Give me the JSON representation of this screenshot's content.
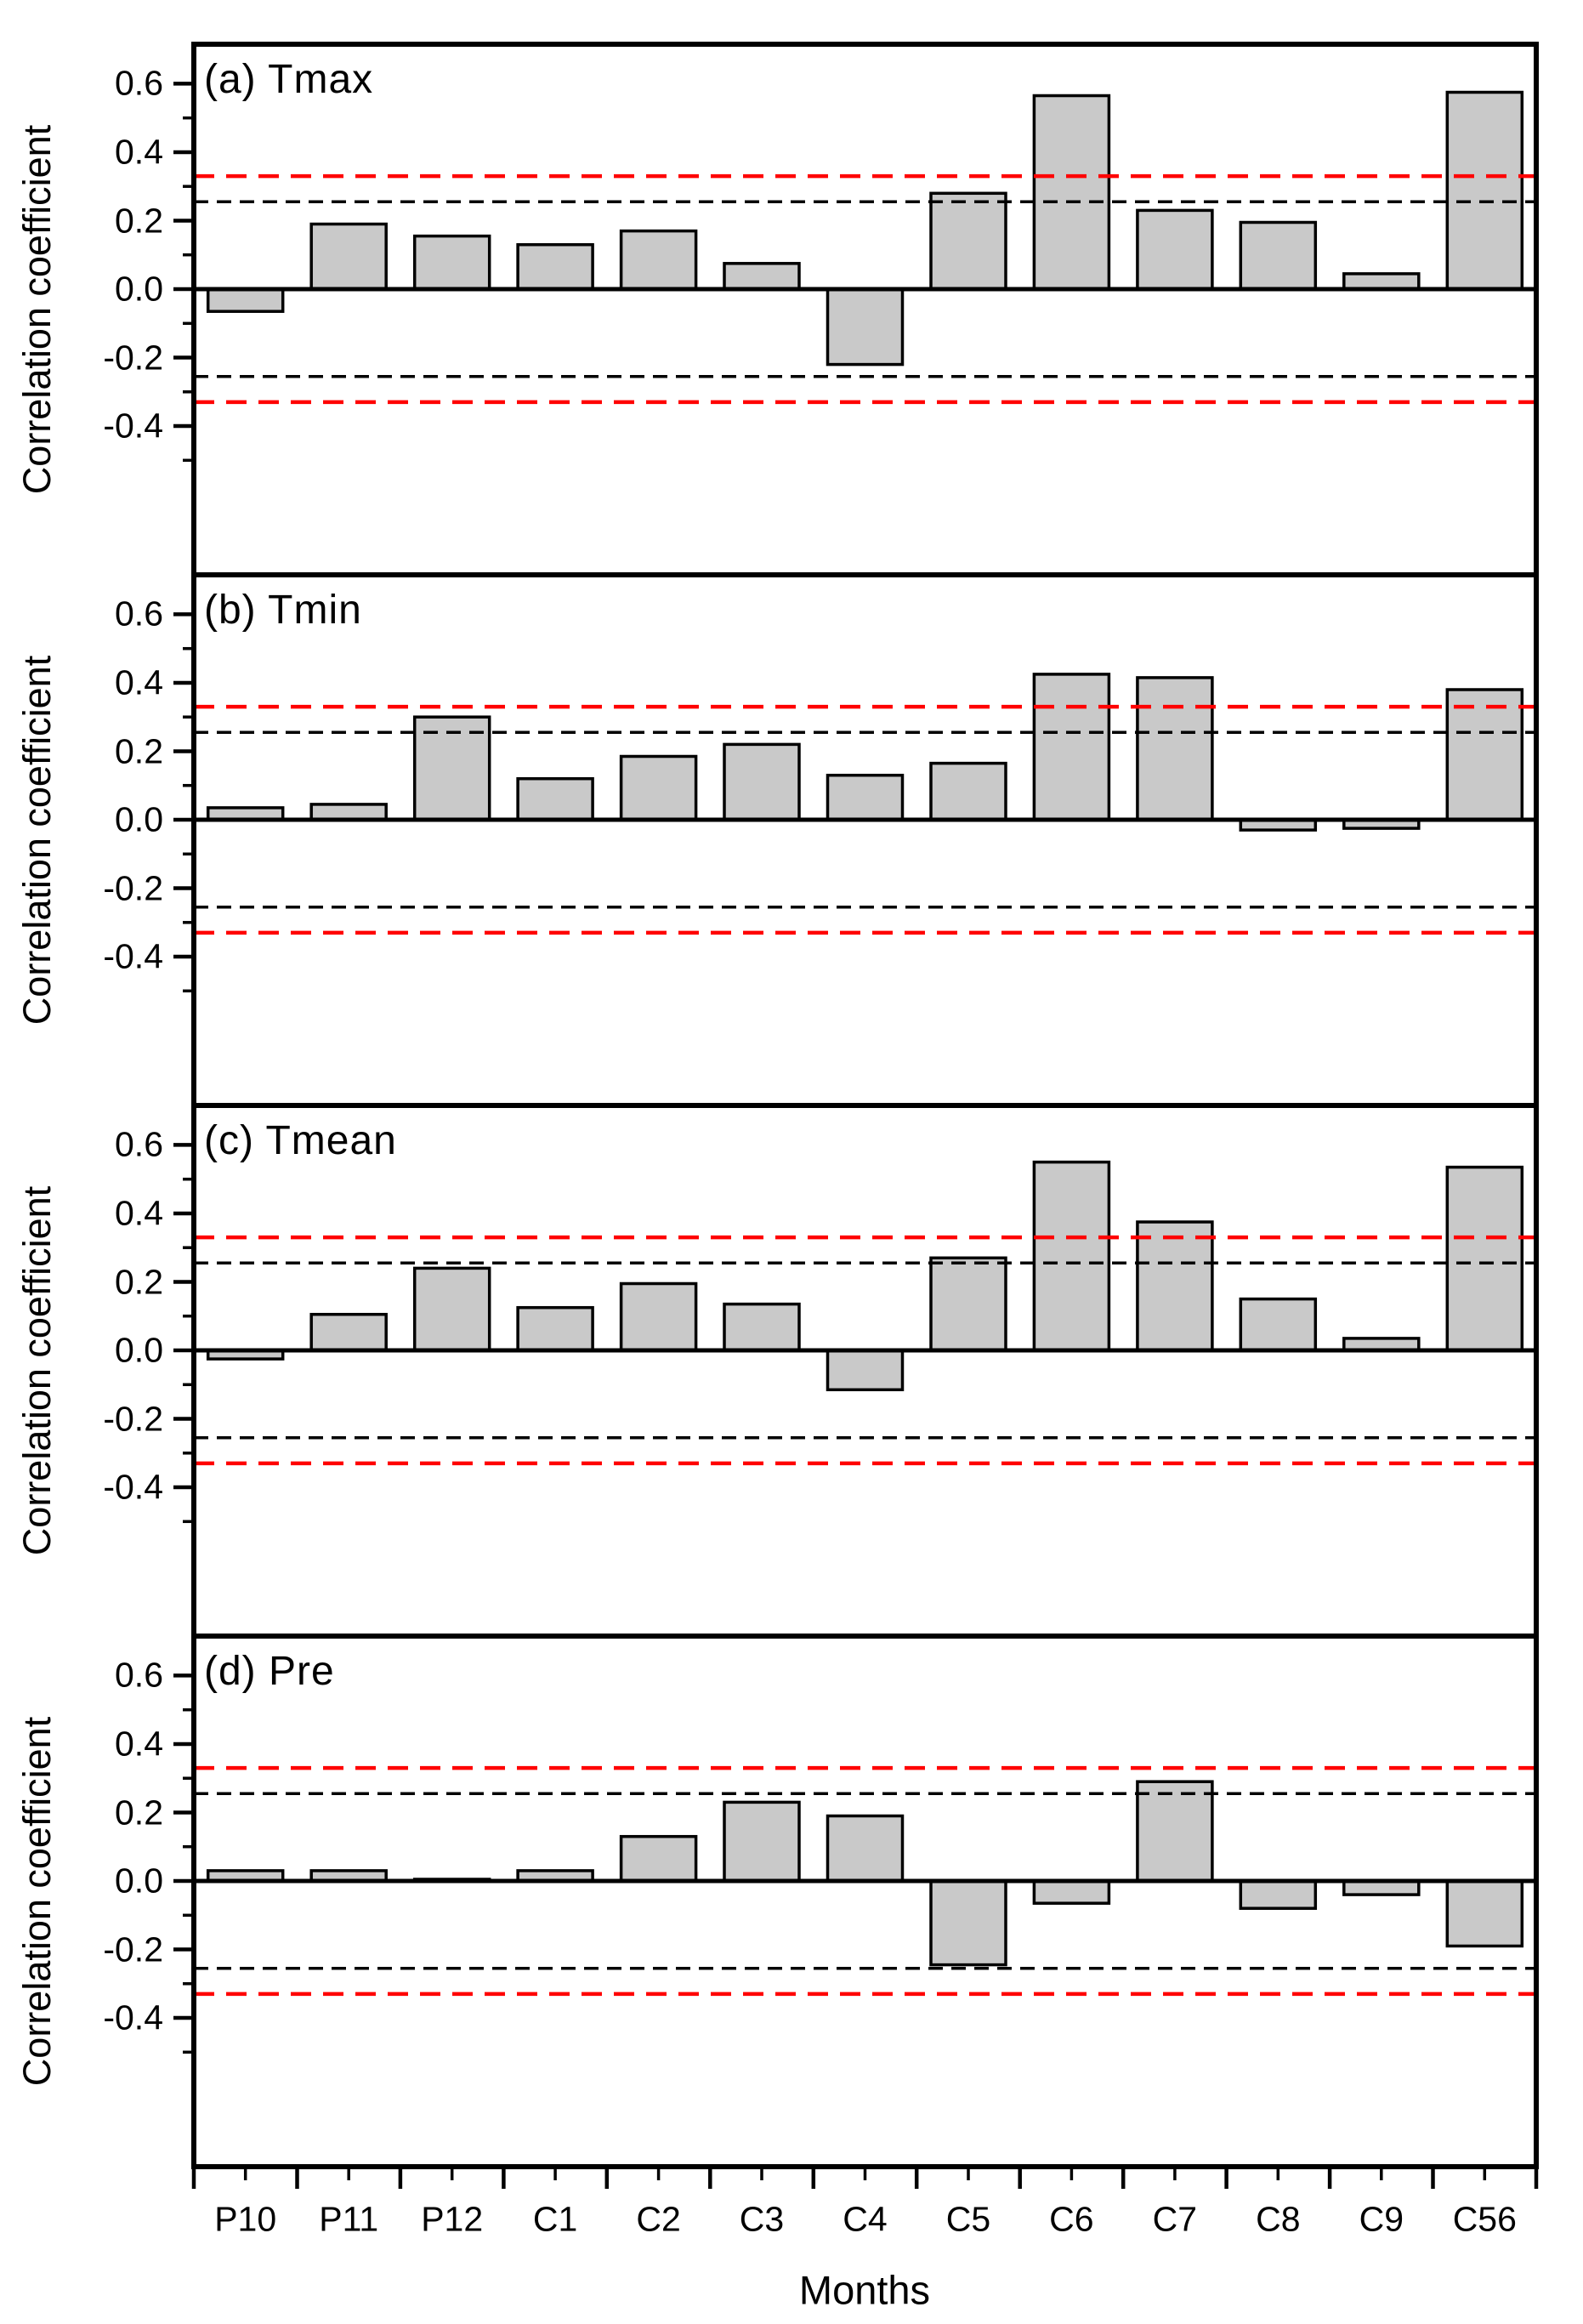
{
  "figure": {
    "y_axis_label": "Correlation coefficient",
    "x_axis_label": "Months",
    "background": "#ffffff",
    "colors": {
      "bar_fill": "#c9c9c9",
      "bar_stroke": "#000000",
      "axis": "#000000",
      "significance_outer_dashed": "#ff0000",
      "significance_inner_dashed": "#000000"
    }
  },
  "chart_data": {
    "type": "bar",
    "xlabel": "Months",
    "ylabel": "Correlation coefficient",
    "grid": false,
    "legend": null,
    "ylim": [
      -0.835,
      0.715
    ],
    "y_ticks": [
      {
        "value": 0.6,
        "label": "0.6"
      },
      {
        "value": 0.4,
        "label": "0.4"
      },
      {
        "value": 0.2,
        "label": "0.2"
      },
      {
        "value": 0.0,
        "label": "0.0"
      },
      {
        "value": -0.2,
        "label": "-0.2"
      },
      {
        "value": -0.4,
        "label": "-0.4"
      }
    ],
    "y_minor_ticks": [
      0.5,
      0.3,
      0.1,
      -0.1,
      -0.3,
      -0.5
    ],
    "categories": [
      "P10",
      "P11",
      "P12",
      "C1",
      "C2",
      "C3",
      "C4",
      "C5",
      "C6",
      "C7",
      "C8",
      "C9",
      "C56"
    ],
    "significance_lines": [
      {
        "value": 0.33,
        "color": "#ff0000",
        "style": "dashed"
      },
      {
        "value": -0.33,
        "color": "#ff0000",
        "style": "dashed"
      },
      {
        "value": 0.255,
        "color": "#000000",
        "style": "dashed"
      },
      {
        "value": -0.255,
        "color": "#000000",
        "style": "dashed"
      }
    ],
    "panels": [
      {
        "id": "a",
        "title": "(a) Tmax",
        "values": [
          -0.065,
          0.19,
          0.155,
          0.13,
          0.17,
          0.075,
          -0.22,
          0.28,
          0.565,
          0.23,
          0.195,
          0.045,
          0.575
        ]
      },
      {
        "id": "b",
        "title": "(b) Tmin",
        "values": [
          0.035,
          0.045,
          0.3,
          0.12,
          0.185,
          0.22,
          0.13,
          0.165,
          0.425,
          0.415,
          -0.03,
          -0.025,
          0.38
        ]
      },
      {
        "id": "c",
        "title": "(c) Tmean",
        "values": [
          -0.025,
          0.105,
          0.24,
          0.125,
          0.195,
          0.135,
          -0.115,
          0.27,
          0.55,
          0.375,
          0.15,
          0.035,
          0.535
        ]
      },
      {
        "id": "d",
        "title": "(d) Pre",
        "values": [
          0.03,
          0.03,
          0.005,
          0.03,
          0.13,
          0.23,
          0.19,
          -0.245,
          -0.065,
          0.29,
          -0.08,
          -0.04,
          -0.19
        ]
      }
    ]
  }
}
